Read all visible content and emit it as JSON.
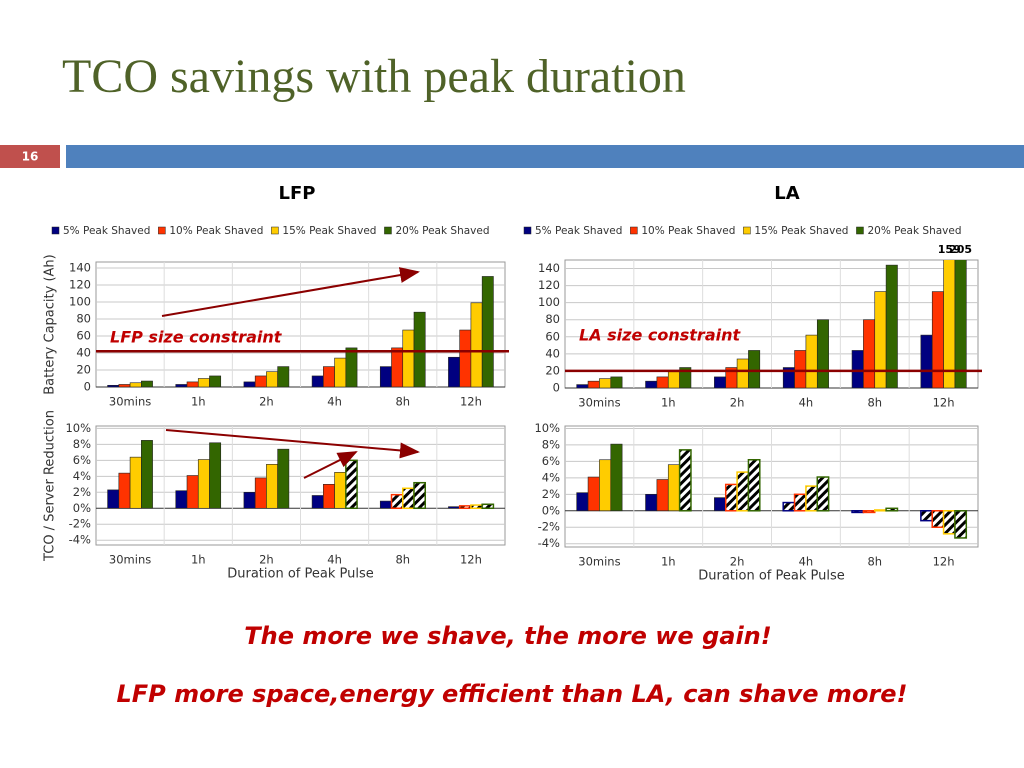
{
  "slide": {
    "title": "TCO savings with peak duration",
    "number": "16",
    "columns": [
      "LFP",
      "LA"
    ],
    "footer": [
      "The more we shave, the more we gain!",
      "LFP more space,energy efficient than LA, can shave more!"
    ]
  },
  "chart_data": [
    {
      "type": "bar",
      "legend": "top",
      "ylabel": "Battery Capacity (Ah)",
      "categories": [
        "30mins",
        "1h",
        "2h",
        "4h",
        "8h",
        "12h"
      ],
      "ylim": [
        0,
        147
      ],
      "yticks": [
        0,
        20,
        40,
        60,
        80,
        100,
        120,
        140
      ],
      "grid": true,
      "reference_line": {
        "value": 42,
        "label": "LFP size constraint",
        "color": "#8b0000"
      },
      "series": [
        {
          "name": "5% Peak Shaved",
          "color": "#000080",
          "values": [
            2,
            3,
            6,
            13,
            24,
            35
          ]
        },
        {
          "name": "10% Peak Shaved",
          "color": "#ff3300",
          "values": [
            3,
            6,
            13,
            24,
            46,
            67
          ]
        },
        {
          "name": "15% Peak Shaved",
          "color": "#ffcc00",
          "values": [
            5,
            10,
            18,
            34,
            67,
            99
          ]
        },
        {
          "name": "20% Peak Shaved",
          "color": "#336600",
          "values": [
            7,
            13,
            24,
            46,
            88,
            130
          ]
        }
      ]
    },
    {
      "type": "bar",
      "legend": "top",
      "categories": [
        "30mins",
        "1h",
        "2h",
        "4h",
        "8h",
        "12h"
      ],
      "ylim": [
        0,
        150
      ],
      "yticks": [
        0,
        20,
        40,
        60,
        80,
        100,
        120,
        140
      ],
      "grid": true,
      "reference_line": {
        "value": 20,
        "label": "LA size constraint",
        "color": "#8b0000"
      },
      "series": [
        {
          "name": "5% Peak Shaved",
          "color": "#000080",
          "values": [
            4,
            8,
            13,
            24,
            44,
            62
          ]
        },
        {
          "name": "10% Peak Shaved",
          "color": "#ff3300",
          "values": [
            8,
            13,
            24,
            44,
            80,
            113
          ]
        },
        {
          "name": "15% Peak Shaved",
          "color": "#ffcc00",
          "values": [
            11,
            19,
            34,
            62,
            113,
            159
          ],
          "value_labels": [
            null,
            null,
            null,
            null,
            null,
            "159"
          ]
        },
        {
          "name": "20% Peak Shaved",
          "color": "#336600",
          "values": [
            13,
            24,
            44,
            80,
            144,
            205
          ],
          "value_labels": [
            null,
            null,
            null,
            null,
            null,
            "205"
          ]
        }
      ]
    },
    {
      "type": "bar",
      "ylabel": "TCO / Server Reduction",
      "xlabel": "Duration of Peak Pulse",
      "categories": [
        "30mins",
        "1h",
        "2h",
        "4h",
        "8h",
        "12h"
      ],
      "ylim": [
        -4.6,
        10.3
      ],
      "yticks": [
        {
          "value": -4,
          "label": "-4%"
        },
        {
          "value": -2,
          "label": "-2%"
        },
        {
          "value": 0,
          "label": "0%"
        },
        {
          "value": 2,
          "label": "2%"
        },
        {
          "value": 4,
          "label": "4%"
        },
        {
          "value": 6,
          "label": "6%"
        },
        {
          "value": 8,
          "label": "8%"
        },
        {
          "value": 10,
          "label": "10%"
        }
      ],
      "grid": true,
      "series": [
        {
          "color": "#000080",
          "values": [
            2.3,
            2.2,
            2.0,
            1.6,
            0.9,
            0.2
          ],
          "hatched": [
            false,
            false,
            false,
            false,
            false,
            false
          ]
        },
        {
          "color": "#ff3300",
          "values": [
            4.4,
            4.1,
            3.8,
            3.0,
            1.7,
            0.3
          ],
          "hatched": [
            false,
            false,
            false,
            false,
            true,
            true
          ]
        },
        {
          "color": "#ffcc00",
          "values": [
            6.4,
            6.1,
            5.5,
            4.5,
            2.5,
            0.4
          ],
          "hatched": [
            false,
            false,
            false,
            false,
            true,
            true
          ]
        },
        {
          "color": "#336600",
          "values": [
            8.5,
            8.2,
            7.4,
            6.0,
            3.2,
            0.5
          ],
          "hatched": [
            false,
            false,
            false,
            true,
            true,
            true
          ]
        }
      ]
    },
    {
      "type": "bar",
      "xlabel": "Duration of Peak Pulse",
      "categories": [
        "30mins",
        "1h",
        "2h",
        "4h",
        "8h",
        "12h"
      ],
      "ylim": [
        -4.4,
        10.3
      ],
      "yticks": [
        {
          "value": -4,
          "label": "-4%"
        },
        {
          "value": -2,
          "label": "-2%"
        },
        {
          "value": 0,
          "label": "0%"
        },
        {
          "value": 2,
          "label": "2%"
        },
        {
          "value": 4,
          "label": "4%"
        },
        {
          "value": 6,
          "label": "6%"
        },
        {
          "value": 8,
          "label": "8%"
        },
        {
          "value": 10,
          "label": "10%"
        }
      ],
      "grid": true,
      "series": [
        {
          "color": "#000080",
          "values": [
            2.2,
            2.0,
            1.6,
            1.0,
            -0.2,
            -1.2
          ],
          "hatched": [
            false,
            false,
            false,
            true,
            true,
            true
          ]
        },
        {
          "color": "#ff3300",
          "values": [
            4.1,
            3.8,
            3.2,
            2.0,
            -0.2,
            -2.0
          ],
          "hatched": [
            false,
            false,
            true,
            true,
            true,
            true
          ]
        },
        {
          "color": "#ffcc00",
          "values": [
            6.2,
            5.6,
            4.7,
            3.0,
            0.1,
            -2.8
          ],
          "hatched": [
            false,
            false,
            true,
            true,
            true,
            true
          ]
        },
        {
          "color": "#336600",
          "values": [
            8.1,
            7.4,
            6.2,
            4.1,
            0.3,
            -3.3
          ],
          "hatched": [
            false,
            true,
            true,
            true,
            true,
            true
          ]
        }
      ]
    }
  ]
}
